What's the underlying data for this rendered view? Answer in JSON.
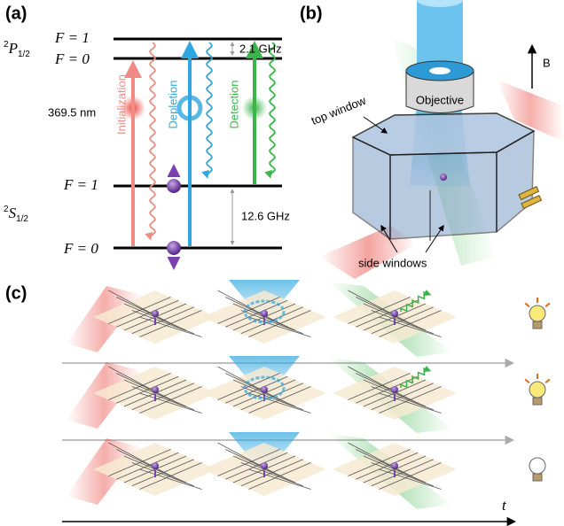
{
  "panel_a": {
    "label": "(a)",
    "upper_manifold": {
      "sup": "2",
      "main": "P",
      "sub": "1/2"
    },
    "upper_levels": [
      "F = 1",
      "F = 0"
    ],
    "upper_splitting": "2.1 GHz",
    "wavelength": "369.5 nm",
    "beams": [
      "Initialization",
      "Depletion",
      "Detection"
    ],
    "lower_manifold": {
      "sup": "2",
      "main": "S",
      "sub": "1/2"
    },
    "lower_levels": [
      "F = 1",
      "F = 0"
    ],
    "lower_splitting": "12.6 GHz"
  },
  "panel_b": {
    "label": "(b)",
    "field": "B",
    "objective": "Objective",
    "top_window": "top window",
    "side_windows": "side windows"
  },
  "panel_c": {
    "label": "(c)",
    "time_axis": "t"
  }
}
